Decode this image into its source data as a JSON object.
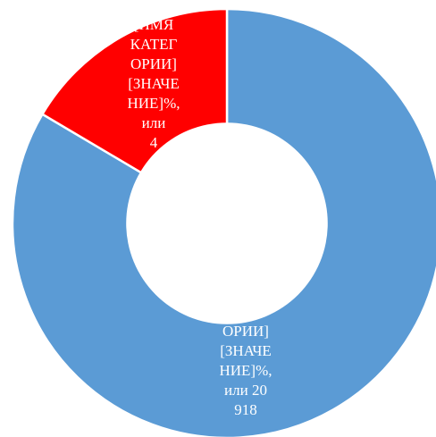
{
  "chart_data": {
    "type": "donut",
    "title": "",
    "slices": [
      {
        "name": "[ИМЯ КАТЕГОРИИ]",
        "value": 20918,
        "percent": 83.5,
        "color": "#5B9BD5",
        "label_lines": [
          "ОРИИ]",
          "[ЗНАЧЕ",
          "НИЕ]%,",
          "или 20",
          "918"
        ]
      },
      {
        "name": "[ИМЯ КАТЕГОРИИ]",
        "value": 4132,
        "percent": 16.5,
        "color": "#FF0000",
        "label_lines": [
          "[ИМЯ",
          "КАТЕГ",
          "ОРИИ]",
          "[ЗНАЧЕ",
          "НИЕ]%,",
          "или",
          "4"
        ]
      }
    ],
    "start_angle_deg": 0,
    "direction": "clockwise",
    "hole_ratio": 0.47,
    "slice_border_color": "#ffffff",
    "label_color": "#ffffff"
  }
}
